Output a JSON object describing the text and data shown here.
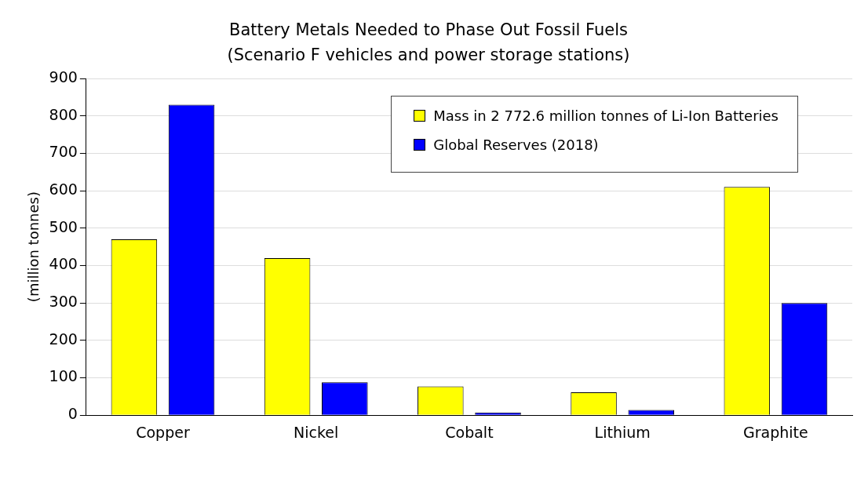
{
  "chart_data": {
    "type": "bar",
    "title": "Battery Metals Needed to Phase Out Fossil Fuels",
    "subtitle": "(Scenario F vehicles and power storage stations)",
    "ylabel": "(million tonnes)",
    "categories": [
      "Copper",
      "Nickel",
      "Cobalt",
      "Lithium",
      "Graphite"
    ],
    "series": [
      {
        "name": "Mass in 2 772.6 million tonnes of Li-Ion Batteries",
        "color": "#ffff00",
        "values": [
          470,
          420,
          77,
          61,
          610
        ]
      },
      {
        "name": "Global Reserves (2018)",
        "color": "#0000ff",
        "values": [
          830,
          88,
          7,
          14,
          300
        ]
      }
    ],
    "ylim": [
      0,
      900
    ],
    "yticks": [
      0,
      100,
      200,
      300,
      400,
      500,
      600,
      700,
      800,
      900
    ],
    "grid": "y",
    "legend": "top right"
  }
}
